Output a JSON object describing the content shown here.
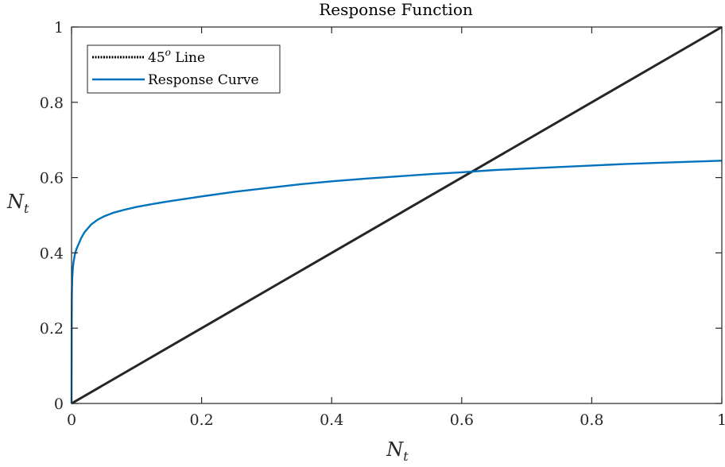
{
  "chart_data": {
    "type": "line",
    "title": "Response Function",
    "xlabel": {
      "base": "N",
      "sub": "t"
    },
    "ylabel": {
      "base": "N",
      "sub": "t"
    },
    "xlim": [
      0,
      1
    ],
    "ylim": [
      0,
      1
    ],
    "xticks": [
      "0",
      "0.2",
      "0.4",
      "0.6",
      "0.8",
      "1"
    ],
    "yticks": [
      "0",
      "0.2",
      "0.4",
      "0.6",
      "0.8",
      "1"
    ],
    "grid": false,
    "legend_position": "top-left",
    "legend": [
      {
        "label_base": "45",
        "label_sup": "o",
        "label_rest": " Line",
        "style": "dotted",
        "color": "#000000"
      },
      {
        "label": "Response Curve",
        "style": "solid",
        "color": "#0072BD"
      }
    ],
    "series": [
      {
        "name": "45o Line",
        "color": "#262626",
        "x": [
          0,
          1
        ],
        "y": [
          0,
          1
        ]
      },
      {
        "name": "Response Curve",
        "color": "#0072BD",
        "x": [
          0,
          0.0002,
          0.0005,
          0.001,
          0.002,
          0.003,
          0.005,
          0.0075,
          0.01,
          0.015,
          0.02,
          0.03,
          0.04,
          0.05,
          0.065,
          0.08,
          0.1,
          0.125,
          0.15,
          0.2,
          0.25,
          0.3,
          0.35,
          0.4,
          0.45,
          0.5,
          0.55,
          0.6,
          0.65,
          0.7,
          0.75,
          0.8,
          0.85,
          0.9,
          0.95,
          1.0
        ],
        "y": [
          0,
          0.2,
          0.29,
          0.33,
          0.36,
          0.375,
          0.395,
          0.41,
          0.42,
          0.44,
          0.455,
          0.475,
          0.488,
          0.497,
          0.507,
          0.514,
          0.522,
          0.53,
          0.537,
          0.55,
          0.562,
          0.572,
          0.582,
          0.59,
          0.597,
          0.603,
          0.609,
          0.614,
          0.62,
          0.624,
          0.628,
          0.632,
          0.636,
          0.639,
          0.642,
          0.645
        ]
      }
    ]
  }
}
